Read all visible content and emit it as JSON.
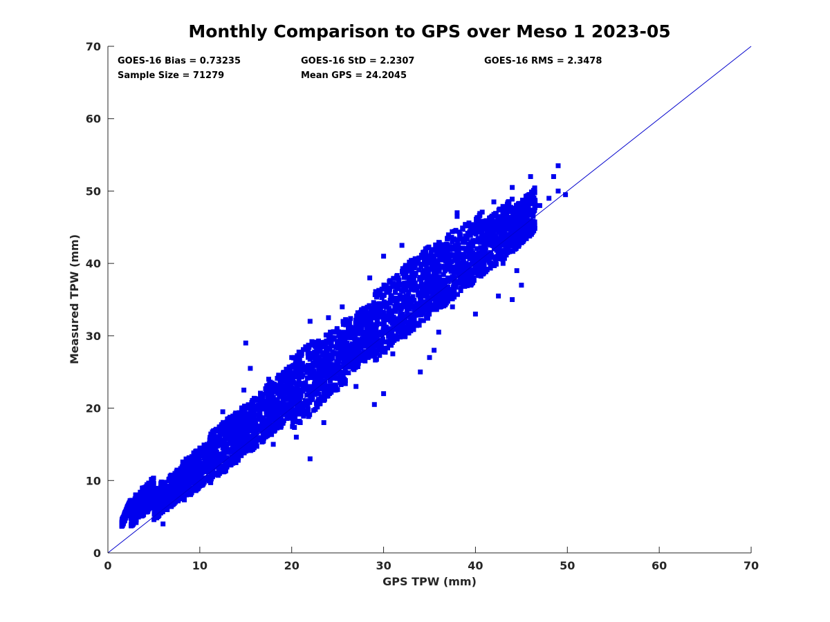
{
  "chart_data": {
    "type": "scatter",
    "title": "Monthly Comparison to GPS over Meso 1 2023-05",
    "xlabel": "GPS TPW (mm)",
    "ylabel": "Measured TPW (mm)",
    "xlim": [
      0,
      70
    ],
    "ylim": [
      0,
      70
    ],
    "xticks": [
      "0",
      "10",
      "20",
      "30",
      "40",
      "50",
      "60",
      "70"
    ],
    "yticks": [
      "0",
      "10",
      "20",
      "30",
      "40",
      "50",
      "60",
      "70"
    ],
    "grid": false,
    "marker_color": "#0000ee",
    "line_color": "#0000cc",
    "reference_line": {
      "x": [
        0,
        70
      ],
      "y": [
        0,
        70
      ]
    },
    "stats": {
      "bias": "GOES-16 Bias = 0.73235",
      "std": "GOES-16 StD = 2.2307",
      "rms": "GOES-16 RMS = 2.3478",
      "sample_size": "Sample Size = 71279",
      "mean_gps": "Mean GPS = 24.2045"
    },
    "x": [
      1.8,
      2.5,
      3.2,
      4.0,
      4.8,
      5.5,
      6.3,
      7.0,
      7.8,
      8.5,
      9.3,
      10.0,
      11.0,
      12.0,
      13.0,
      14.0,
      15.0,
      16.0,
      17.0,
      18.0,
      19.0,
      20.0,
      21.0,
      22.0,
      23.0,
      24.0,
      25.0,
      26.0,
      27.0,
      28.0,
      29.0,
      30.0,
      31.0,
      32.0,
      33.0,
      34.0,
      35.0,
      36.0,
      37.0,
      38.0,
      39.0,
      40.0,
      41.0,
      42.0,
      43.0,
      44.0,
      45.0,
      46.0,
      47.0,
      48.0,
      49.0,
      49.8,
      12.5,
      15.0,
      22.0,
      30.0,
      35.0,
      40.0,
      45.0,
      48.5,
      49.0,
      22.0,
      30.0,
      38.0,
      44.0,
      32.0,
      38.0,
      42.0,
      46.0,
      14.8,
      15.5,
      20.5,
      24.0,
      25.5,
      28.5,
      34.0,
      43.5,
      41.0,
      45.0,
      44.0,
      20.0,
      29.0,
      35.5,
      42.5,
      8.5,
      10.0,
      12.5,
      17.5,
      23.5,
      27.0,
      31.0,
      37.5,
      39.5,
      44.5,
      20.0,
      26.0,
      36.0,
      43.0,
      6.0,
      9.5,
      18.0
    ],
    "y": [
      5.0,
      5.5,
      6.0,
      6.5,
      7.0,
      7.5,
      8.0,
      8.5,
      9.0,
      9.5,
      10.0,
      11.0,
      12.0,
      13.0,
      14.0,
      15.0,
      16.0,
      17.0,
      18.0,
      19.0,
      20.0,
      21.0,
      22.0,
      23.0,
      24.0,
      25.0,
      26.0,
      27.0,
      28.0,
      29.0,
      30.0,
      31.0,
      32.0,
      33.0,
      34.0,
      35.0,
      36.0,
      37.0,
      38.0,
      39.0,
      40.0,
      41.0,
      42.0,
      43.0,
      44.0,
      45.0,
      46.0,
      47.0,
      48.0,
      49.0,
      50.0,
      49.5,
      19.5,
      29.0,
      13.0,
      22.0,
      27.0,
      33.0,
      37.0,
      52.0,
      53.5,
      32.0,
      41.0,
      46.5,
      50.5,
      42.5,
      47.0,
      48.5,
      52.0,
      22.5,
      25.5,
      16.0,
      32.5,
      34.0,
      38.0,
      25.0,
      41.5,
      43.0,
      47.0,
      35.0,
      27.0,
      20.5,
      28.0,
      35.5,
      9.0,
      14.5,
      14.5,
      24.0,
      18.0,
      23.0,
      27.5,
      34.0,
      37.0,
      39.0,
      23.5,
      28.0,
      30.5,
      40.0,
      4.0,
      12.0,
      15.0
    ],
    "cloud": [
      [
        1.5,
        2.5,
        3.5,
        7.5
      ],
      [
        2.5,
        5.0,
        3.5,
        10.5
      ],
      [
        5.0,
        8.0,
        4.5,
        12.0
      ],
      [
        8.0,
        11.0,
        7.0,
        15.5
      ],
      [
        11.0,
        14.0,
        9.5,
        19.5
      ],
      [
        14.0,
        17.0,
        12.5,
        22.5
      ],
      [
        17.0,
        20.0,
        15.5,
        26.0
      ],
      [
        20.0,
        23.0,
        17.0,
        30.0
      ],
      [
        23.0,
        26.0,
        20.5,
        32.5
      ],
      [
        26.0,
        29.0,
        24.5,
        35.0
      ],
      [
        29.0,
        32.0,
        26.5,
        39.0
      ],
      [
        32.0,
        35.0,
        29.5,
        42.5
      ],
      [
        35.0,
        38.0,
        32.5,
        45.0
      ],
      [
        38.0,
        41.0,
        35.5,
        47.5
      ],
      [
        41.0,
        44.0,
        38.5,
        49.0
      ],
      [
        44.0,
        46.5,
        41.5,
        50.5
      ]
    ]
  }
}
